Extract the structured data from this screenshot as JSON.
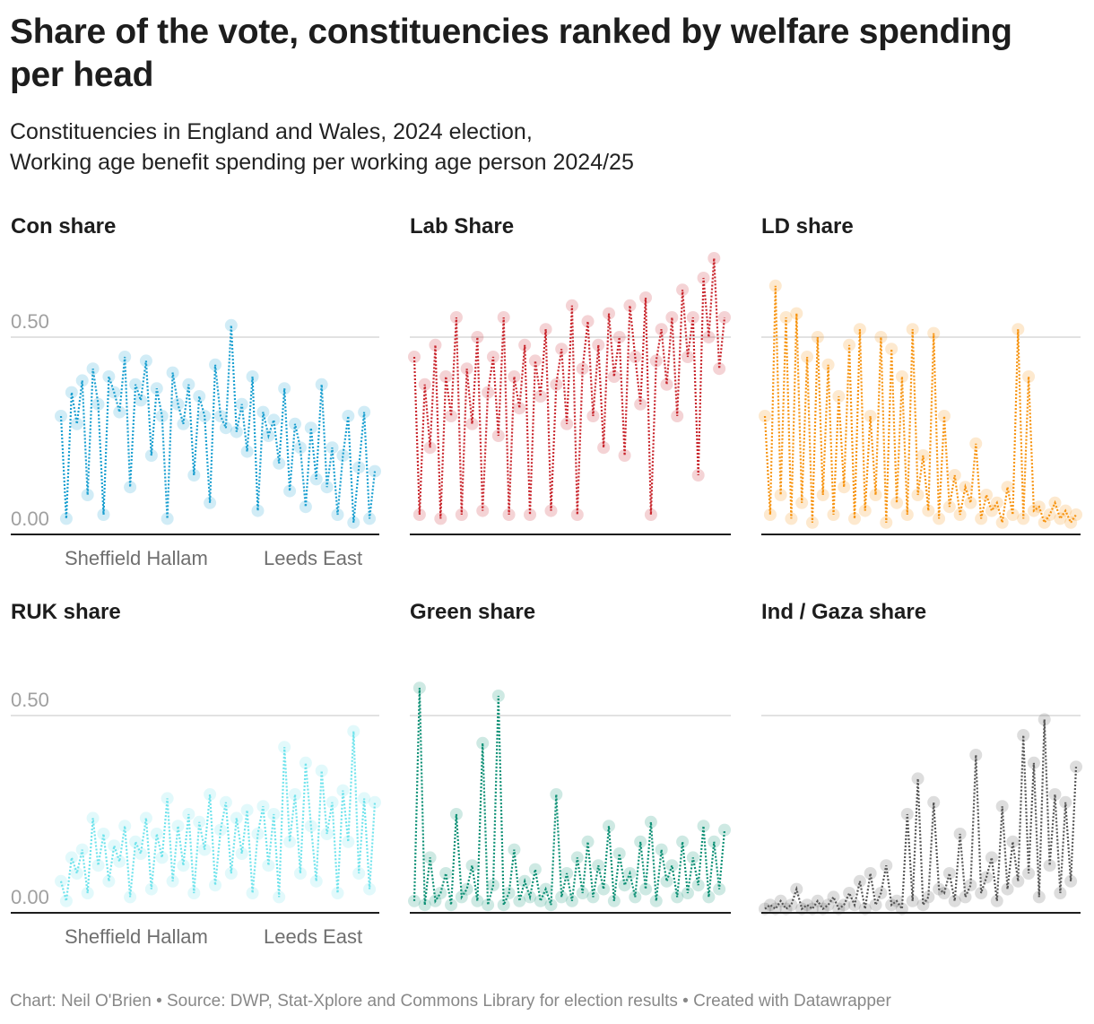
{
  "title": "Share of the vote, constituencies ranked by welfare spending per head",
  "subtitle_line1": "Constituencies in England and Wales, 2024 election,",
  "subtitle_line2": "Working age benefit spending per working age person 2024/25",
  "footer": "Chart: Neil O'Brien • Source: DWP, Stat-Xplore and Commons Library for election results • Created with Datawrapper",
  "chart_data": [
    {
      "type": "line",
      "title": "Con share",
      "color": "#1a9fd0",
      "ylim": [
        0,
        0.6
      ],
      "yticks": [
        "0.00",
        "0.50"
      ],
      "xlabels": [
        "Sheffield Hallam",
        "Leeds East"
      ],
      "grid": true,
      "values": [
        0.3,
        0.04,
        0.36,
        0.28,
        0.39,
        0.1,
        0.42,
        0.33,
        0.05,
        0.4,
        0.36,
        0.31,
        0.45,
        0.12,
        0.38,
        0.34,
        0.44,
        0.2,
        0.37,
        0.3,
        0.04,
        0.41,
        0.33,
        0.28,
        0.38,
        0.15,
        0.35,
        0.3,
        0.08,
        0.43,
        0.3,
        0.27,
        0.53,
        0.26,
        0.33,
        0.21,
        0.4,
        0.06,
        0.31,
        0.25,
        0.29,
        0.18,
        0.37,
        0.11,
        0.28,
        0.22,
        0.07,
        0.27,
        0.14,
        0.38,
        0.12,
        0.22,
        0.05,
        0.2,
        0.3,
        0.03,
        0.17,
        0.31,
        0.04,
        0.16
      ]
    },
    {
      "type": "line",
      "title": "Lab Share",
      "color": "#c8242b",
      "ylim": [
        0,
        0.6
      ],
      "grid": true,
      "values": [
        0.45,
        0.05,
        0.38,
        0.22,
        0.48,
        0.04,
        0.4,
        0.3,
        0.55,
        0.05,
        0.42,
        0.28,
        0.5,
        0.06,
        0.36,
        0.45,
        0.25,
        0.55,
        0.05,
        0.4,
        0.32,
        0.48,
        0.05,
        0.44,
        0.35,
        0.52,
        0.06,
        0.38,
        0.47,
        0.28,
        0.58,
        0.05,
        0.42,
        0.54,
        0.3,
        0.48,
        0.22,
        0.56,
        0.4,
        0.5,
        0.2,
        0.58,
        0.45,
        0.33,
        0.6,
        0.05,
        0.44,
        0.52,
        0.38,
        0.55,
        0.3,
        0.62,
        0.45,
        0.55,
        0.15,
        0.65,
        0.5,
        0.7,
        0.42,
        0.55
      ]
    },
    {
      "type": "line",
      "title": "LD share",
      "color": "#f7930f",
      "ylim": [
        0,
        0.6
      ],
      "grid": true,
      "values": [
        0.3,
        0.05,
        0.63,
        0.1,
        0.55,
        0.04,
        0.56,
        0.08,
        0.45,
        0.03,
        0.5,
        0.1,
        0.43,
        0.05,
        0.35,
        0.12,
        0.48,
        0.04,
        0.52,
        0.06,
        0.3,
        0.1,
        0.5,
        0.03,
        0.47,
        0.08,
        0.4,
        0.05,
        0.52,
        0.1,
        0.2,
        0.06,
        0.51,
        0.04,
        0.3,
        0.07,
        0.15,
        0.05,
        0.12,
        0.08,
        0.23,
        0.04,
        0.1,
        0.06,
        0.08,
        0.03,
        0.12,
        0.05,
        0.52,
        0.04,
        0.4,
        0.06,
        0.07,
        0.03,
        0.05,
        0.08,
        0.04,
        0.06,
        0.03,
        0.05
      ]
    },
    {
      "type": "line",
      "title": "RUK share",
      "color": "#6fe3ec",
      "ylim": [
        0,
        0.6
      ],
      "yticks": [
        "0.00",
        "0.50"
      ],
      "xlabels": [
        "Sheffield Hallam",
        "Leeds East"
      ],
      "grid": true,
      "values": [
        0.08,
        0.03,
        0.14,
        0.1,
        0.16,
        0.05,
        0.24,
        0.12,
        0.2,
        0.08,
        0.17,
        0.13,
        0.22,
        0.04,
        0.18,
        0.15,
        0.24,
        0.06,
        0.2,
        0.14,
        0.29,
        0.08,
        0.22,
        0.12,
        0.25,
        0.05,
        0.23,
        0.16,
        0.3,
        0.07,
        0.21,
        0.28,
        0.1,
        0.24,
        0.15,
        0.26,
        0.05,
        0.2,
        0.27,
        0.12,
        0.25,
        0.04,
        0.42,
        0.18,
        0.3,
        0.1,
        0.38,
        0.22,
        0.08,
        0.36,
        0.2,
        0.28,
        0.05,
        0.31,
        0.18,
        0.46,
        0.1,
        0.29,
        0.06,
        0.28
      ]
    },
    {
      "type": "line",
      "title": "Green share",
      "color": "#0b8f74",
      "ylim": [
        0,
        0.6
      ],
      "grid": true,
      "values": [
        0.03,
        0.57,
        0.02,
        0.14,
        0.03,
        0.05,
        0.1,
        0.02,
        0.25,
        0.04,
        0.06,
        0.12,
        0.03,
        0.43,
        0.02,
        0.07,
        0.55,
        0.02,
        0.05,
        0.16,
        0.03,
        0.08,
        0.04,
        0.11,
        0.03,
        0.06,
        0.02,
        0.3,
        0.04,
        0.1,
        0.03,
        0.14,
        0.05,
        0.18,
        0.04,
        0.12,
        0.06,
        0.22,
        0.03,
        0.15,
        0.07,
        0.1,
        0.04,
        0.18,
        0.06,
        0.23,
        0.03,
        0.16,
        0.08,
        0.12,
        0.04,
        0.18,
        0.05,
        0.14,
        0.07,
        0.22,
        0.04,
        0.18,
        0.06,
        0.21
      ]
    },
    {
      "type": "line",
      "title": "Ind / Gaza share",
      "color": "#555555",
      "ylim": [
        0,
        0.6
      ],
      "grid": true,
      "values": [
        0.01,
        0.02,
        0.01,
        0.03,
        0.01,
        0.02,
        0.06,
        0.01,
        0.02,
        0.01,
        0.03,
        0.01,
        0.02,
        0.04,
        0.01,
        0.02,
        0.05,
        0.02,
        0.08,
        0.01,
        0.1,
        0.02,
        0.05,
        0.12,
        0.02,
        0.03,
        0.01,
        0.25,
        0.03,
        0.34,
        0.02,
        0.04,
        0.28,
        0.06,
        0.05,
        0.1,
        0.03,
        0.2,
        0.04,
        0.07,
        0.4,
        0.05,
        0.09,
        0.14,
        0.03,
        0.27,
        0.06,
        0.18,
        0.08,
        0.45,
        0.1,
        0.38,
        0.04,
        0.49,
        0.12,
        0.3,
        0.05,
        0.28,
        0.08,
        0.37
      ]
    }
  ]
}
